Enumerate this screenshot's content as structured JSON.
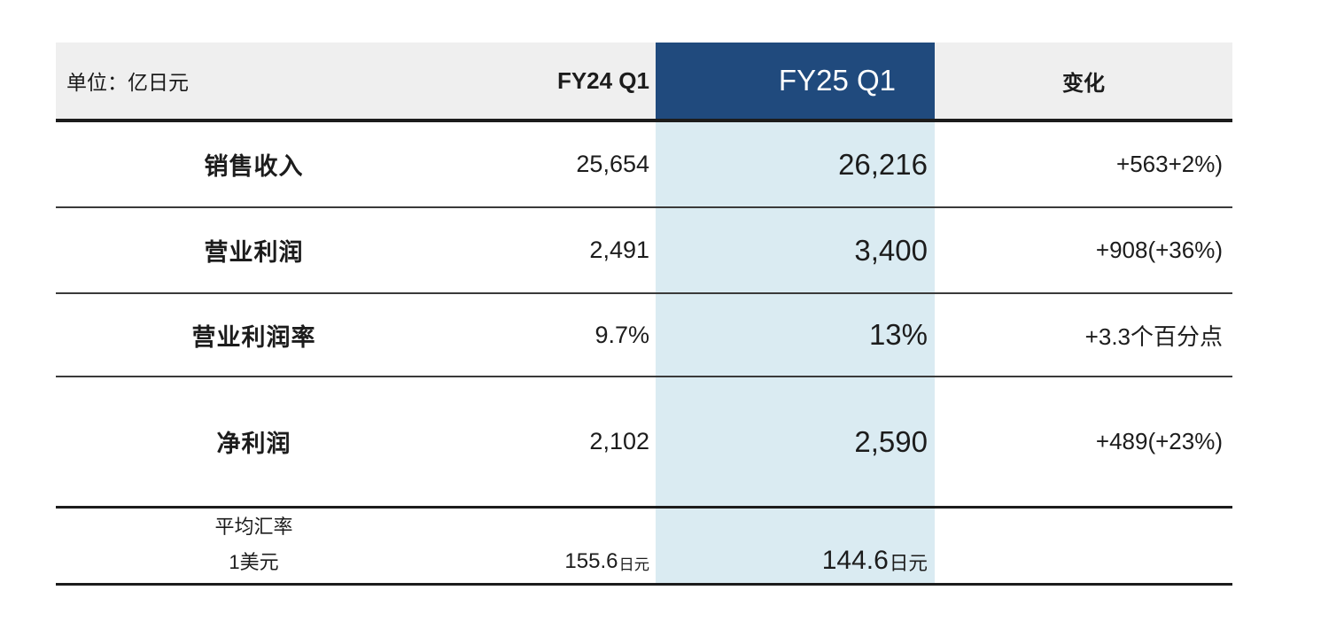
{
  "table": {
    "unit_label": "单位：亿日元",
    "columns": [
      {
        "key": "label",
        "header": ""
      },
      {
        "key": "fy24",
        "header": "FY24 Q1"
      },
      {
        "key": "fy25",
        "header": "FY25 Q1"
      },
      {
        "key": "change",
        "header": "变化"
      }
    ],
    "rows": [
      {
        "label": "销售收入",
        "fy24": "25,654",
        "fy25": "26,216",
        "change": "+563+2%)"
      },
      {
        "label": "营业利润",
        "fy24": "2,491",
        "fy25": "3,400",
        "change": "+908(+36%)"
      },
      {
        "label": "营业利润率",
        "fy24": "9.7%",
        "fy25": "13%",
        "change": "+3.3个百分点"
      },
      {
        "label": "净利润",
        "fy24": "2,102",
        "fy25": "2,590",
        "change": "+489(+23%)"
      }
    ],
    "footer": {
      "label_line1": "平均汇率",
      "label_line2": "1美元",
      "fy24_value": "155.6",
      "fy24_unit": "日元",
      "fy25_value": "144.6",
      "fy25_unit": "日元",
      "change": ""
    }
  },
  "colors": {
    "accent_navy": "#204a7d",
    "highlight_blue": "#daebf2",
    "header_gray": "#efefef",
    "rule_dark": "#1c1c1c"
  },
  "chart_data": {
    "type": "table",
    "unit": "单位：亿日元",
    "columns": [
      "",
      "FY24 Q1",
      "FY25 Q1",
      "变化"
    ],
    "rows": [
      [
        "销售收入",
        "25,654",
        "26,216",
        "+563+2%)"
      ],
      [
        "营业利润",
        "2,491",
        "3,400",
        "+908(+36%)"
      ],
      [
        "营业利润率",
        "9.7%",
        "13%",
        "+3.3个百分点"
      ],
      [
        "净利润",
        "2,102",
        "2,590",
        "+489(+23%)"
      ],
      [
        "平均汇率 1美元",
        "155.6日元",
        "144.6日元",
        ""
      ]
    ],
    "highlight_column": "FY25 Q1",
    "layout_hints": "FY25 Q1 column: navy header with white text, light-blue body band; header row gray; thick rules below header, above and below exchange-rate row"
  }
}
